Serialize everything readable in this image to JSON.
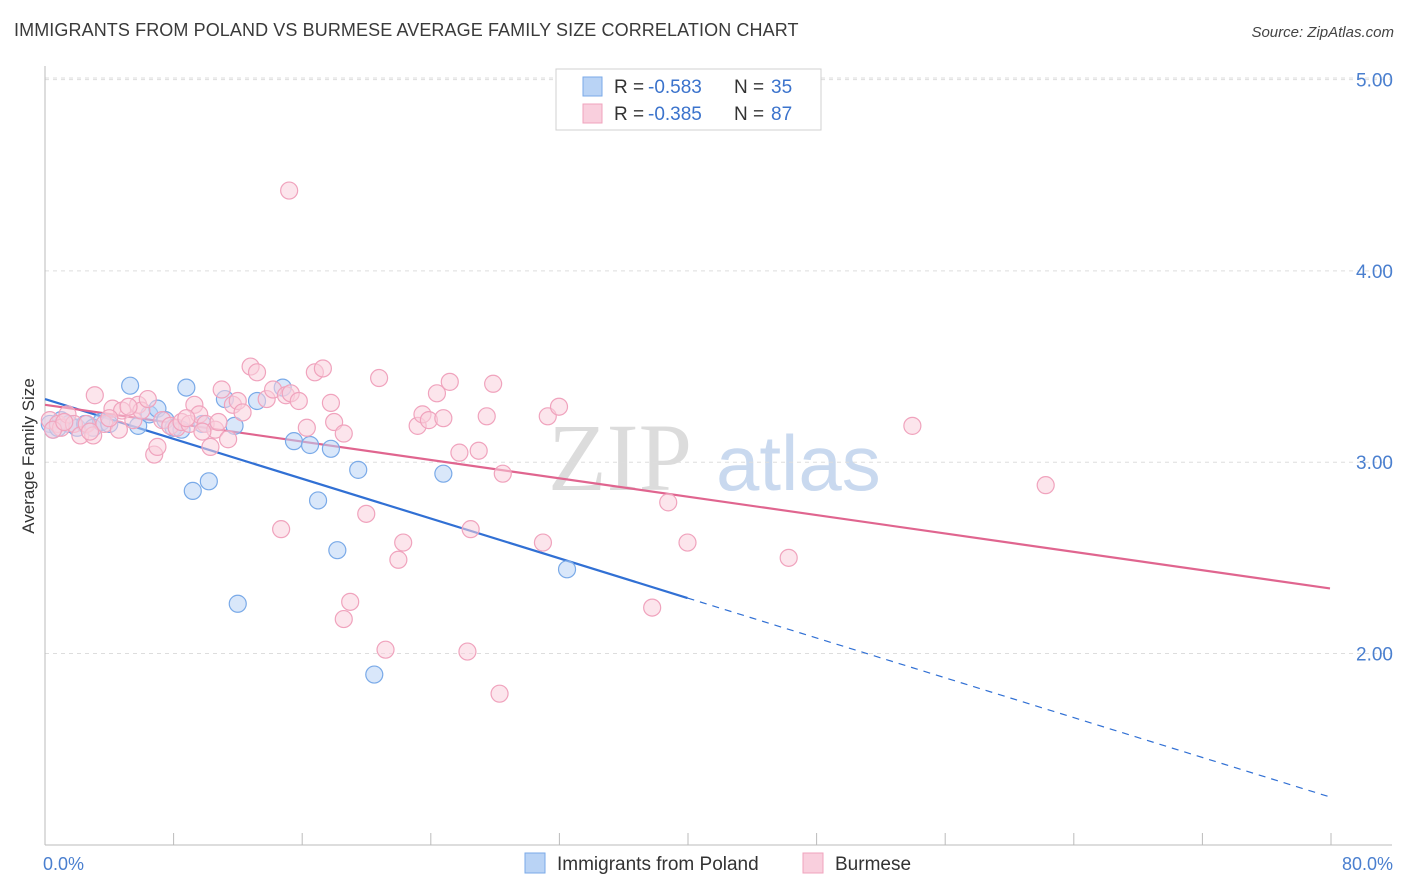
{
  "title": "IMMIGRANTS FROM POLAND VS BURMESE AVERAGE FAMILY SIZE CORRELATION CHART",
  "source": "Source: ZipAtlas.com",
  "watermark": {
    "zip": "ZIP",
    "atlas": "atlas"
  },
  "chart_data": {
    "type": "scatter",
    "ylabel": "Average Family Size",
    "xlim": [
      0,
      80
    ],
    "ylim": [
      1.0,
      5.2
    ],
    "x_tick_labels": [
      "0.0%",
      "80.0%"
    ],
    "y_ticks": [
      2.0,
      3.0,
      4.0,
      5.0
    ],
    "y_tick_labels": [
      "2.00",
      "3.00",
      "4.00",
      "5.00"
    ],
    "grid": true,
    "legend": {
      "placement": "top-center",
      "rows": [
        {
          "r_label": "R = ",
          "r_value": "-0.583",
          "n_label": "N = ",
          "n_value": "35"
        },
        {
          "r_label": "R = ",
          "r_value": "-0.385",
          "n_label": "N = ",
          "n_value": "87"
        }
      ]
    },
    "series": [
      {
        "name": "Immigrants from Poland",
        "color": "#7aaae8",
        "fill": "#b9d3f5",
        "line_color": "#3170d4",
        "trend": {
          "x0": 0,
          "y0": 3.33,
          "x1": 40,
          "y1": 2.29,
          "dash_to_x": 80,
          "dash_to_y": 1.25
        },
        "points": [
          [
            0.3,
            3.2
          ],
          [
            0.5,
            3.17
          ],
          [
            0.8,
            3.18
          ],
          [
            1.0,
            3.22
          ],
          [
            1.5,
            3.2
          ],
          [
            2.0,
            3.18
          ],
          [
            2.5,
            3.2
          ],
          [
            3.0,
            3.18
          ],
          [
            3.5,
            3.21
          ],
          [
            4.0,
            3.2
          ],
          [
            5.3,
            3.4
          ],
          [
            5.8,
            3.19
          ],
          [
            6.5,
            3.25
          ],
          [
            7.0,
            3.28
          ],
          [
            7.5,
            3.22
          ],
          [
            8.0,
            3.18
          ],
          [
            8.5,
            3.17
          ],
          [
            8.8,
            3.39
          ],
          [
            9.2,
            2.85
          ],
          [
            9.8,
            3.2
          ],
          [
            10.2,
            2.9
          ],
          [
            11.2,
            3.33
          ],
          [
            11.8,
            3.19
          ],
          [
            12.0,
            2.26
          ],
          [
            13.2,
            3.32
          ],
          [
            14.8,
            3.39
          ],
          [
            15.5,
            3.11
          ],
          [
            16.5,
            3.09
          ],
          [
            17.0,
            2.8
          ],
          [
            17.8,
            3.07
          ],
          [
            18.2,
            2.54
          ],
          [
            19.5,
            2.96
          ],
          [
            20.5,
            1.89
          ],
          [
            24.8,
            2.94
          ],
          [
            32.5,
            2.44
          ]
        ]
      },
      {
        "name": "Burmese",
        "color": "#f0a3bd",
        "fill": "#f9cfdd",
        "line_color": "#e0658f",
        "trend": {
          "x0": 0,
          "y0": 3.3,
          "x1": 80,
          "y1": 2.34
        },
        "points": [
          [
            0.3,
            3.22
          ],
          [
            0.8,
            3.2
          ],
          [
            1.0,
            3.18
          ],
          [
            1.4,
            3.25
          ],
          [
            1.8,
            3.2
          ],
          [
            2.2,
            3.14
          ],
          [
            2.6,
            3.2
          ],
          [
            3.0,
            3.14
          ],
          [
            3.1,
            3.35
          ],
          [
            3.7,
            3.2
          ],
          [
            4.2,
            3.28
          ],
          [
            4.6,
            3.17
          ],
          [
            4.8,
            3.27
          ],
          [
            5.5,
            3.22
          ],
          [
            5.8,
            3.3
          ],
          [
            6.0,
            3.27
          ],
          [
            6.4,
            3.33
          ],
          [
            6.8,
            3.04
          ],
          [
            7.0,
            3.08
          ],
          [
            7.3,
            3.22
          ],
          [
            7.8,
            3.19
          ],
          [
            8.2,
            3.18
          ],
          [
            8.5,
            3.21
          ],
          [
            9.0,
            3.2
          ],
          [
            9.3,
            3.3
          ],
          [
            9.6,
            3.25
          ],
          [
            10.0,
            3.2
          ],
          [
            10.3,
            3.08
          ],
          [
            10.6,
            3.17
          ],
          [
            11.0,
            3.38
          ],
          [
            11.4,
            3.12
          ],
          [
            11.7,
            3.3
          ],
          [
            12.0,
            3.32
          ],
          [
            12.3,
            3.26
          ],
          [
            12.8,
            3.5
          ],
          [
            13.2,
            3.47
          ],
          [
            13.8,
            3.33
          ],
          [
            14.2,
            3.38
          ],
          [
            14.7,
            2.65
          ],
          [
            15.0,
            3.35
          ],
          [
            15.3,
            3.36
          ],
          [
            15.8,
            3.32
          ],
          [
            15.2,
            4.42
          ],
          [
            16.3,
            3.18
          ],
          [
            16.8,
            3.47
          ],
          [
            17.3,
            3.49
          ],
          [
            17.8,
            3.31
          ],
          [
            18.0,
            3.21
          ],
          [
            18.6,
            3.15
          ],
          [
            18.6,
            2.18
          ],
          [
            19.0,
            2.27
          ],
          [
            20.0,
            2.73
          ],
          [
            20.8,
            3.44
          ],
          [
            21.2,
            2.02
          ],
          [
            22.0,
            2.49
          ],
          [
            22.3,
            2.58
          ],
          [
            23.2,
            3.19
          ],
          [
            23.5,
            3.25
          ],
          [
            23.9,
            3.22
          ],
          [
            24.4,
            3.36
          ],
          [
            24.8,
            3.23
          ],
          [
            25.2,
            3.42
          ],
          [
            25.8,
            3.05
          ],
          [
            26.3,
            2.01
          ],
          [
            26.5,
            2.65
          ],
          [
            27.0,
            3.06
          ],
          [
            27.5,
            3.24
          ],
          [
            27.9,
            3.41
          ],
          [
            28.3,
            1.79
          ],
          [
            28.5,
            2.94
          ],
          [
            31.0,
            2.58
          ],
          [
            31.3,
            3.24
          ],
          [
            32.0,
            3.29
          ],
          [
            37.8,
            2.24
          ],
          [
            38.8,
            2.79
          ],
          [
            40.0,
            2.58
          ],
          [
            46.3,
            2.5
          ],
          [
            54.0,
            3.19
          ],
          [
            62.3,
            2.88
          ],
          [
            0.5,
            3.17
          ],
          [
            1.2,
            3.21
          ],
          [
            2.8,
            3.16
          ],
          [
            4.0,
            3.23
          ],
          [
            5.2,
            3.29
          ],
          [
            8.8,
            3.23
          ],
          [
            9.8,
            3.16
          ],
          [
            10.8,
            3.21
          ]
        ]
      }
    ]
  }
}
